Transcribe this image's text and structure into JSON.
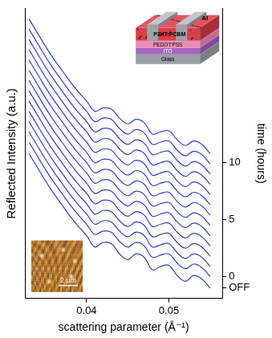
{
  "chart_data": {
    "type": "line",
    "x_label": "scattering parameter (Å⁻¹)",
    "y_label": "Reflected Intensity (a.u.)",
    "y2_label": "time (hours)",
    "color": "#2f3fd1",
    "marker": "none",
    "line_style": "solid",
    "grid": false,
    "xlim": [
      0.0325,
      0.0565
    ],
    "xticks": [
      0.04,
      0.05
    ],
    "ylim": [
      -1.9,
      23.5
    ],
    "yticks": [],
    "y2lim": [
      -1.9,
      23.5
    ],
    "y2ticks": [
      {
        "value": -1.0,
        "label": "OFF"
      },
      0,
      5,
      10
    ],
    "x": [
      0.033,
      0.034,
      0.035,
      0.036,
      0.037,
      0.038,
      0.039,
      0.04,
      0.041,
      0.042,
      0.043,
      0.044,
      0.045,
      0.046,
      0.047,
      0.048,
      0.049,
      0.05,
      0.051,
      0.052,
      0.053,
      0.054,
      0.055
    ],
    "series": [
      {
        "values": [
          10.8,
          9.6,
          8.4,
          7.3,
          6.3,
          5.3,
          4.4,
          3.6,
          2.6,
          3.0,
          2.9,
          2.0,
          1.5,
          2.0,
          1.7,
          0.6,
          0.9,
          1.0,
          0.1,
          -0.4,
          0.1,
          -0.2,
          -1.0
        ]
      },
      {
        "values": [
          11.8,
          10.6,
          9.4,
          8.3,
          7.3,
          6.3,
          5.4,
          4.6,
          3.7,
          4.0,
          3.9,
          3.1,
          2.6,
          3.0,
          2.7,
          1.7,
          1.9,
          2.0,
          1.2,
          0.7,
          1.1,
          0.8,
          0.0
        ]
      },
      {
        "values": [
          12.7,
          11.5,
          10.3,
          9.2,
          8.2,
          7.2,
          6.3,
          5.5,
          4.6,
          4.9,
          4.8,
          4.0,
          3.5,
          3.9,
          3.6,
          2.6,
          2.8,
          2.9,
          2.1,
          1.6,
          2.0,
          1.7,
          0.9
        ]
      },
      {
        "values": [
          13.6,
          12.4,
          11.2,
          10.1,
          9.1,
          8.1,
          7.2,
          6.4,
          5.5,
          5.8,
          5.7,
          4.9,
          4.4,
          4.8,
          4.5,
          3.5,
          3.7,
          3.8,
          3.0,
          2.5,
          2.9,
          2.6,
          1.8
        ]
      },
      {
        "values": [
          14.5,
          13.3,
          12.1,
          11.0,
          10.0,
          9.0,
          8.1,
          7.3,
          6.4,
          6.7,
          6.6,
          5.8,
          5.3,
          5.7,
          5.4,
          4.4,
          4.6,
          4.7,
          3.9,
          3.4,
          3.8,
          3.5,
          2.7
        ]
      },
      {
        "values": [
          15.4,
          14.2,
          13.0,
          11.9,
          10.9,
          9.9,
          9.0,
          8.2,
          7.3,
          7.6,
          7.5,
          6.7,
          6.2,
          6.6,
          6.3,
          5.3,
          5.5,
          5.6,
          4.8,
          4.3,
          4.7,
          4.4,
          3.6
        ]
      },
      {
        "values": [
          16.3,
          15.1,
          13.9,
          12.8,
          11.8,
          10.8,
          9.9,
          9.1,
          8.2,
          8.5,
          8.4,
          7.6,
          7.1,
          7.5,
          7.2,
          6.2,
          6.4,
          6.5,
          5.7,
          5.2,
          5.6,
          5.3,
          4.5
        ]
      },
      {
        "values": [
          17.2,
          16.0,
          14.8,
          13.7,
          12.7,
          11.7,
          10.8,
          10.0,
          9.1,
          9.4,
          9.3,
          8.5,
          8.0,
          8.4,
          8.1,
          7.1,
          7.3,
          7.4,
          6.6,
          6.1,
          6.5,
          6.2,
          5.4
        ]
      },
      {
        "values": [
          18.1,
          16.9,
          15.7,
          14.6,
          13.6,
          12.6,
          11.7,
          10.9,
          10.0,
          10.3,
          10.2,
          9.4,
          8.9,
          9.3,
          9.0,
          8.0,
          8.2,
          8.3,
          7.5,
          7.0,
          7.4,
          7.1,
          6.3
        ]
      },
      {
        "values": [
          19.0,
          17.8,
          16.6,
          15.5,
          14.5,
          13.5,
          12.6,
          11.8,
          10.9,
          11.2,
          11.1,
          10.3,
          9.8,
          10.2,
          9.9,
          8.9,
          9.1,
          9.2,
          8.4,
          7.9,
          8.3,
          8.0,
          7.2
        ]
      },
      {
        "values": [
          19.9,
          18.7,
          17.5,
          16.4,
          15.4,
          14.4,
          13.5,
          12.7,
          11.8,
          12.1,
          12.0,
          11.2,
          10.7,
          11.1,
          10.8,
          9.8,
          10.0,
          10.1,
          9.3,
          8.8,
          9.2,
          8.9,
          8.1
        ]
      },
      {
        "values": [
          20.8,
          19.6,
          18.4,
          17.3,
          16.3,
          15.3,
          14.4,
          13.6,
          12.7,
          13.0,
          12.9,
          12.1,
          11.6,
          12.0,
          11.7,
          10.7,
          10.9,
          11.0,
          10.2,
          9.7,
          10.1,
          9.8,
          9.0
        ]
      },
      {
        "values": [
          21.7,
          20.5,
          19.3,
          18.2,
          17.2,
          16.2,
          15.3,
          14.5,
          13.6,
          13.9,
          13.8,
          13.0,
          12.5,
          12.9,
          12.6,
          11.6,
          11.8,
          11.9,
          11.1,
          10.6,
          11.0,
          10.7,
          9.9
        ]
      },
      {
        "values": [
          22.6,
          21.4,
          20.2,
          19.1,
          18.1,
          17.1,
          16.2,
          15.4,
          14.5,
          14.8,
          14.7,
          13.9,
          13.4,
          13.8,
          13.5,
          12.5,
          12.7,
          12.8,
          12.0,
          11.5,
          11.9,
          11.6,
          10.8
        ]
      }
    ]
  },
  "device_inset": {
    "electrode": "Al",
    "layers": [
      "P3HT:PCBM",
      "PEDOT:PSS",
      "ITO",
      "Glass"
    ]
  },
  "afm_inset": {
    "scale_bar": "2 μm"
  }
}
